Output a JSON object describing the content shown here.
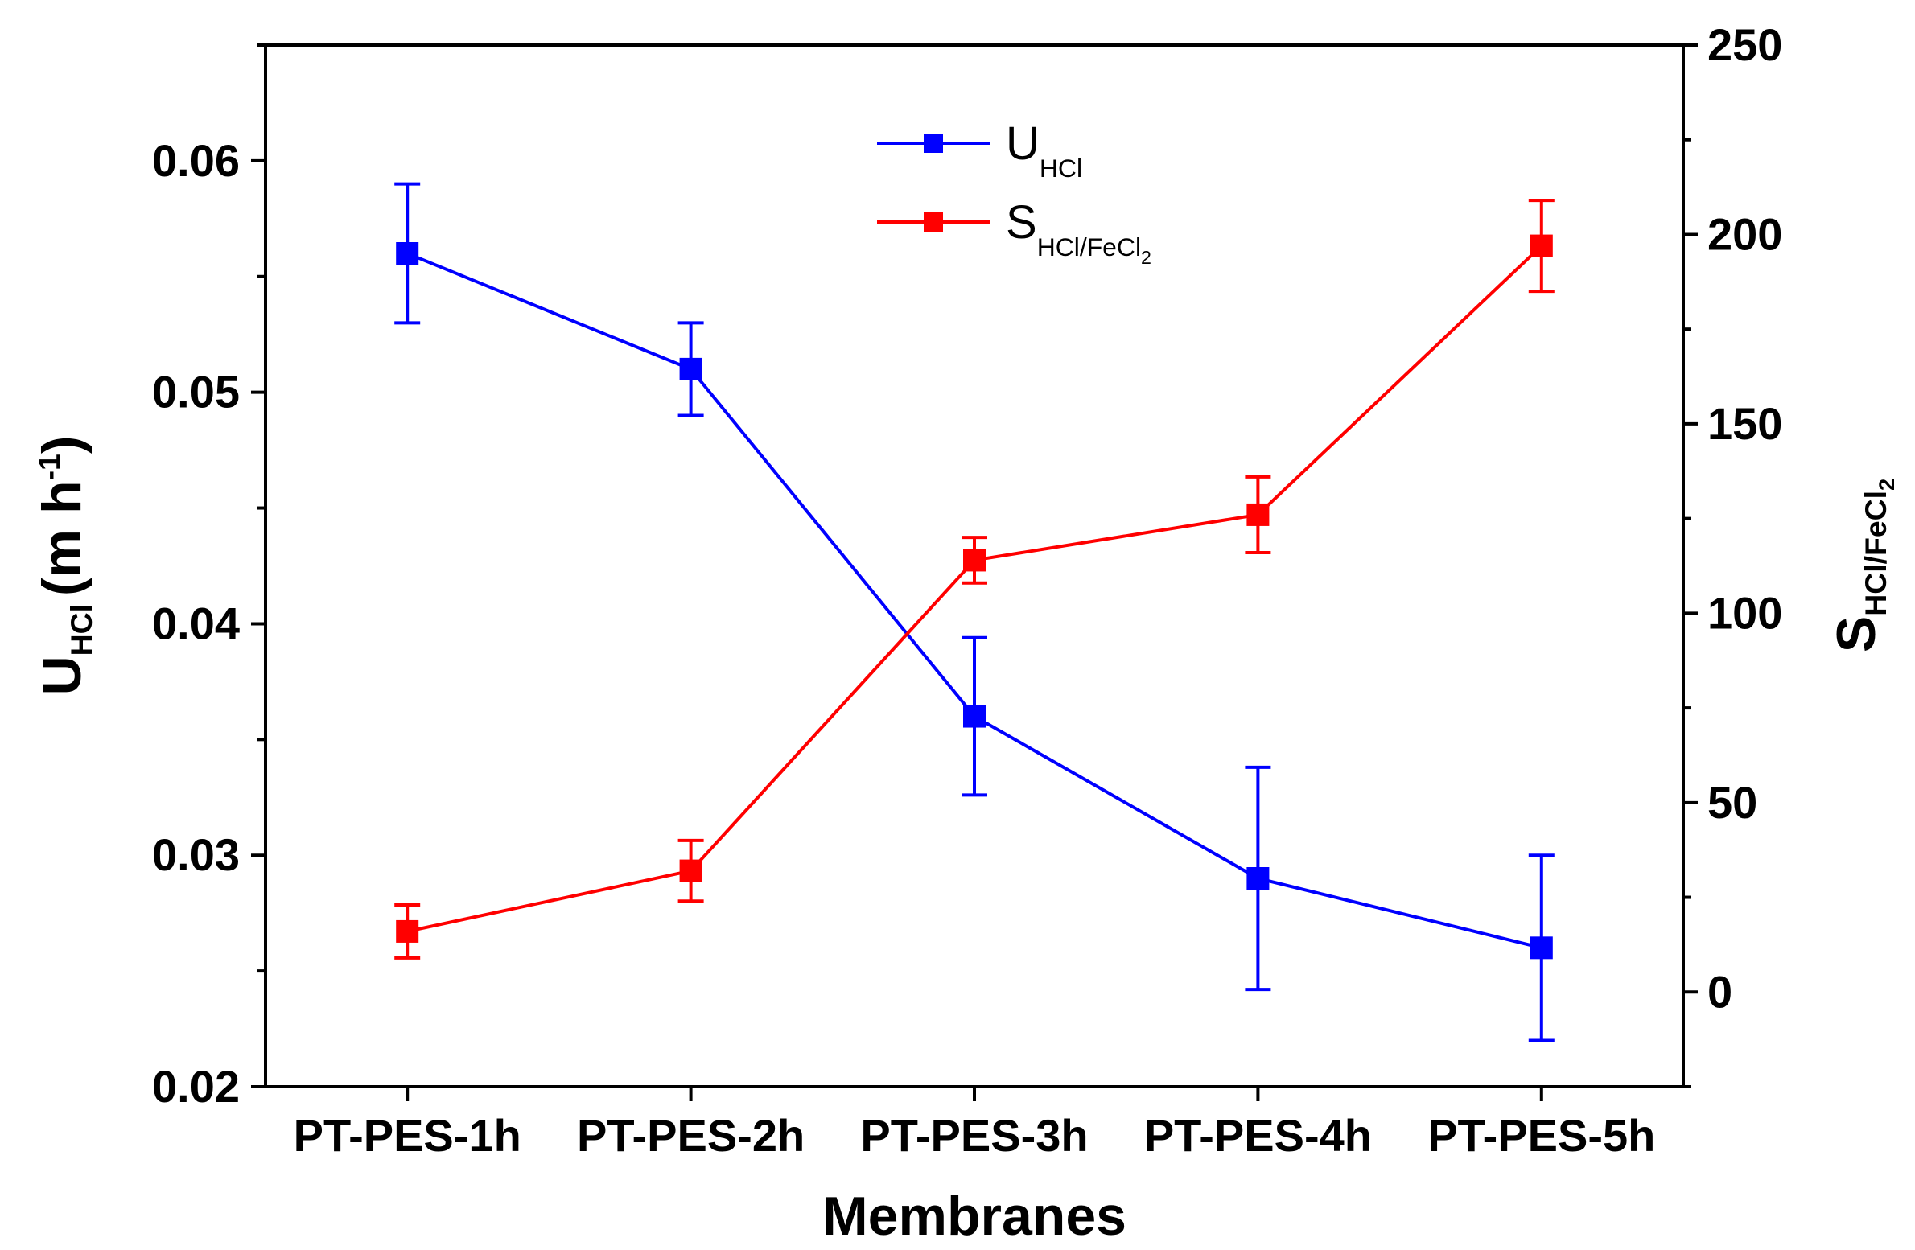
{
  "chart_data": {
    "type": "line",
    "categories": [
      "PT-PES-1h",
      "PT-PES-2h",
      "PT-PES-3h",
      "PT-PES-4h",
      "PT-PES-5h"
    ],
    "xlabel": "Membranes",
    "y_left": {
      "label_main": "U",
      "label_sub": "HCl",
      "label_unit": "(m h",
      "label_sup": "-1",
      "label_close": ")",
      "range": [
        0.02,
        0.065
      ],
      "ticks": [
        "0.02",
        "0.03",
        "0.04",
        "0.05",
        "0.06"
      ],
      "tick_values": [
        0.02,
        0.03,
        0.04,
        0.05,
        0.06
      ]
    },
    "y_right": {
      "label_main": "S",
      "label_sub": "HCl/FeCl",
      "label_subsub": "2",
      "range": [
        -25,
        250
      ],
      "ticks": [
        "0",
        "50",
        "100",
        "150",
        "200",
        "250"
      ],
      "tick_values": [
        0,
        50,
        100,
        150,
        200,
        250
      ]
    },
    "series": [
      {
        "name_main": "U",
        "name_sub": "HCl",
        "axis": "left",
        "color": "#0000ff",
        "values": [
          0.056,
          0.051,
          0.036,
          0.029,
          0.026
        ],
        "errors": [
          0.003,
          0.002,
          0.0034,
          0.0048,
          0.004
        ]
      },
      {
        "name_main": "S",
        "name_sub": "HCl/FeCl",
        "name_subsub": "2",
        "axis": "right",
        "color": "#ff0000",
        "values": [
          16,
          32,
          114,
          126,
          197
        ],
        "errors": [
          7,
          8,
          6,
          10,
          12
        ]
      }
    ],
    "legend_position": "top-center",
    "grid": false
  }
}
